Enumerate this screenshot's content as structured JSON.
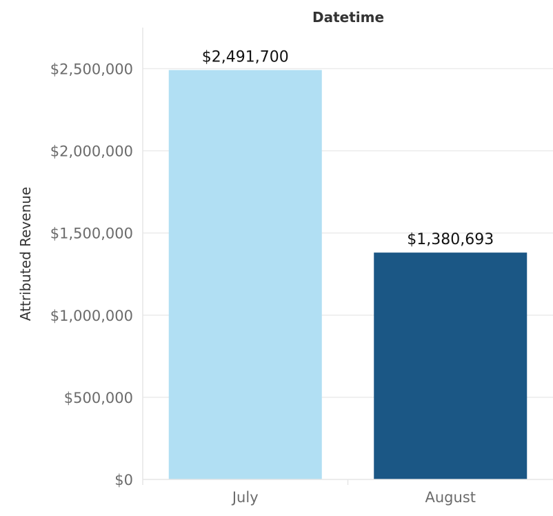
{
  "chart_data": {
    "type": "bar",
    "title": "Datetime",
    "ylabel": "Attributed Revenue",
    "xlabel": "",
    "categories": [
      "July",
      "August"
    ],
    "values": [
      2491700,
      1380693
    ],
    "value_labels": [
      "$2,491,700",
      "$1,380,693"
    ],
    "bar_colors": [
      "#b1dff3",
      "#1b5785"
    ],
    "ylim": [
      0,
      2750000
    ],
    "yticks": [
      0,
      500000,
      1000000,
      1500000,
      2000000,
      2500000
    ],
    "ytick_labels": [
      "$0",
      "$500,000",
      "$1,000,000",
      "$1,500,000",
      "$2,000,000",
      "$2,500,000"
    ],
    "grid": true,
    "legend": "none"
  }
}
